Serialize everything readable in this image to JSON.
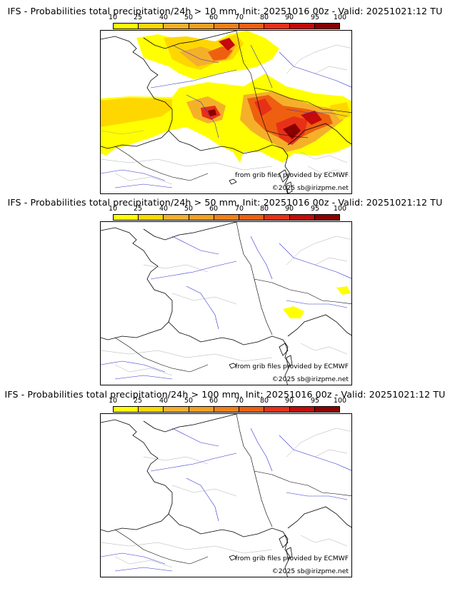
{
  "colorbar": {
    "ticks": [
      "10",
      "25",
      "40",
      "50",
      "60",
      "70",
      "80",
      "90",
      "95",
      "100"
    ],
    "colors": [
      "#ffff00",
      "#ffd700",
      "#f5b02a",
      "#f2a020",
      "#f08018",
      "#ee6010",
      "#e83018",
      "#c40a0a",
      "#8a0000",
      "#5a0000"
    ]
  },
  "panels": [
    {
      "title": "IFS - Probabilities total precipitation/24h > 10 mm, Init: 20251016 00z - Valid: 20251021:12 TU",
      "threshold": "10"
    },
    {
      "title": "IFS - Probabilities total precipitation/24h > 50 mm, Init: 20251016 00z - Valid: 20251021:12 TU",
      "threshold": "50"
    },
    {
      "title": "IFS - Probabilities total precipitation/24h > 100 mm, Init: 20251016 00z - Valid: 20251021:12 TU",
      "threshold": "100"
    }
  ],
  "credits": {
    "source": "from grib files provided by ECMWF",
    "copyright": "©2025 sb@irizpme.net"
  }
}
